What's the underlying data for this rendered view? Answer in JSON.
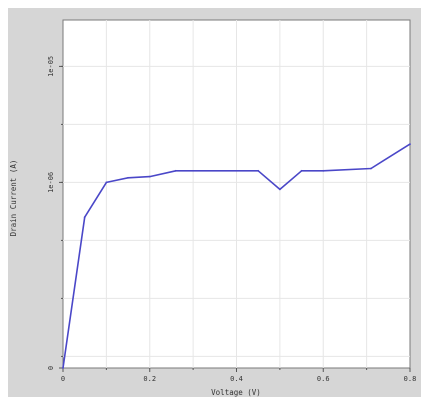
{
  "chart_data": {
    "type": "line",
    "title": "",
    "xlabel": "Voltage (V)",
    "ylabel": "Drain Current (A)",
    "y_scale": "log",
    "xlim": [
      0,
      0.8
    ],
    "ylim_exponent": [
      -7.6,
      -4.6
    ],
    "x_ticks": [
      {
        "value": 0,
        "label": "0"
      },
      {
        "value": 0.2,
        "label": "0.2"
      },
      {
        "value": 0.4,
        "label": "0.4"
      },
      {
        "value": 0.6,
        "label": "0.6"
      },
      {
        "value": 0.8,
        "label": "0.8"
      }
    ],
    "y_ticks": [
      {
        "exponent": -7.6,
        "label": "0"
      },
      {
        "exponent": -6,
        "label": "1e-06"
      },
      {
        "exponent": -5,
        "label": "1e-05"
      }
    ],
    "grid": true,
    "series": [
      {
        "color": "#4a47c8",
        "x": [
          0,
          0.05,
          0.1,
          0.15,
          0.2,
          0.26,
          0.45,
          0.5,
          0.55,
          0.6,
          0.71,
          0.8
        ],
        "y_exponent": [
          -7.6,
          -6.3,
          -6.0,
          -5.96,
          -5.95,
          -5.9,
          -5.9,
          -6.06,
          -5.9,
          -5.9,
          -5.88,
          -5.67
        ]
      }
    ]
  }
}
